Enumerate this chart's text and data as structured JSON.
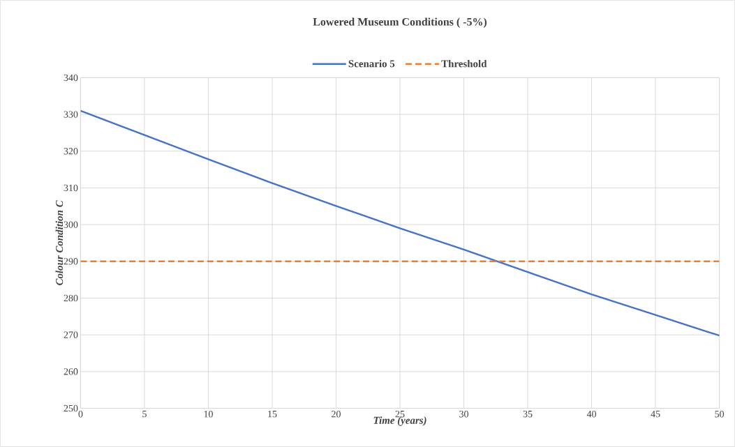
{
  "chart_data": {
    "type": "line",
    "title": "Lowered Museum Conditions ( -5%)",
    "xlabel": "Time (years)",
    "ylabel": "Colour Condition C",
    "x": [
      0,
      5,
      10,
      15,
      20,
      25,
      30,
      35,
      40,
      45,
      50
    ],
    "series": [
      {
        "name": "Scenario 5",
        "color": "#4472c4",
        "line_style": "solid",
        "values": [
          331,
          324.4,
          317.8,
          311.3,
          305.1,
          299,
          293.2,
          287.1,
          281,
          275.4,
          269.8
        ]
      },
      {
        "name": "Threshold",
        "color": "#ed7d31",
        "line_style": "dashed",
        "values": [
          290,
          290,
          290,
          290,
          290,
          290,
          290,
          290,
          290,
          290,
          290
        ]
      }
    ],
    "xlim": [
      0,
      50
    ],
    "xticks": [
      0,
      5,
      10,
      15,
      20,
      25,
      30,
      35,
      40,
      45,
      50
    ],
    "ylim": [
      250,
      340
    ],
    "yticks": [
      250,
      260,
      270,
      280,
      290,
      300,
      310,
      320,
      330,
      340
    ],
    "grid": true,
    "legend": "top"
  }
}
